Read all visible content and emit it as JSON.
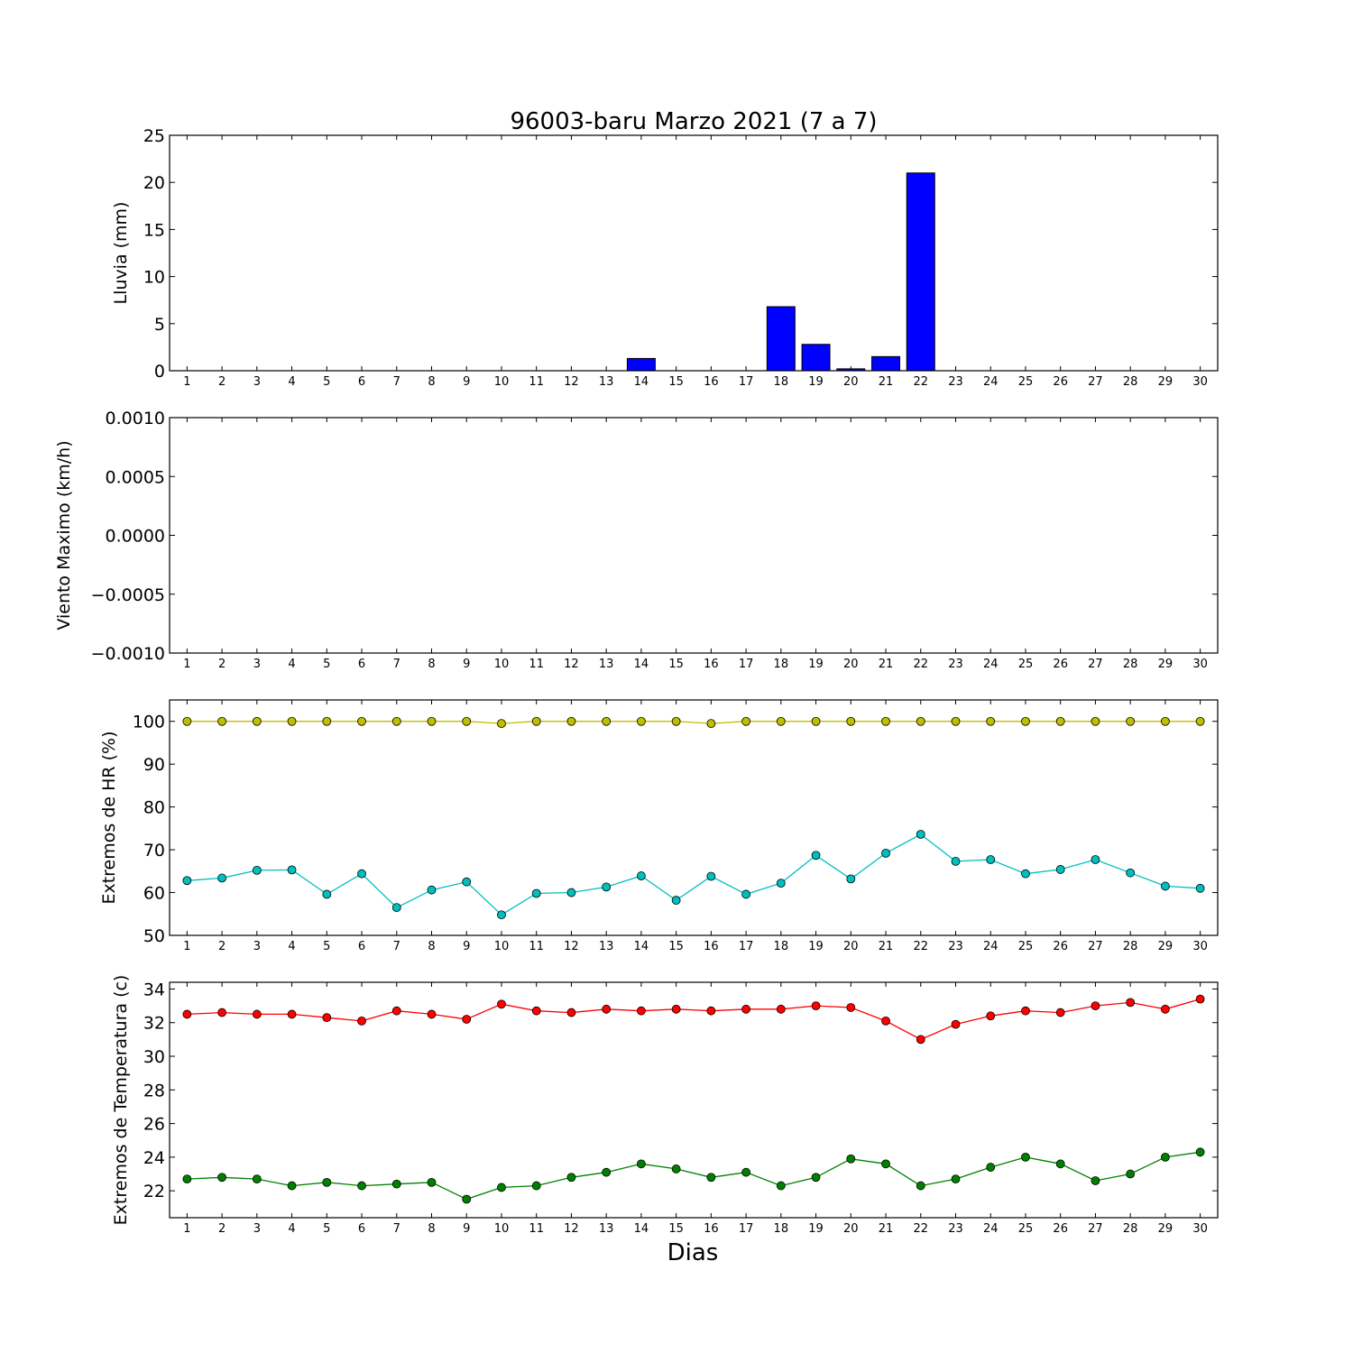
{
  "figure": {
    "title": "96003-baru Marzo 2021  (7 a 7)",
    "xlabel": "Dias"
  },
  "chart_data": [
    {
      "type": "bar",
      "ylabel": "Lluvia (mm)",
      "ylim": [
        0,
        25
      ],
      "yticks": [
        0,
        5,
        10,
        15,
        20,
        25
      ],
      "yticklabels": [
        "0",
        "5",
        "10",
        "15",
        "20",
        "25"
      ],
      "categories": [
        1,
        2,
        3,
        4,
        5,
        6,
        7,
        8,
        9,
        10,
        11,
        12,
        13,
        14,
        15,
        16,
        17,
        18,
        19,
        20,
        21,
        22,
        23,
        24,
        25,
        26,
        27,
        28,
        29,
        30
      ],
      "color": "#0000ff",
      "values": [
        0,
        0,
        0,
        0,
        0,
        0,
        0,
        0,
        0,
        0,
        0,
        0,
        0,
        1.3,
        0,
        0,
        0,
        6.8,
        2.8,
        0.2,
        1.5,
        21.0,
        0,
        0,
        0,
        0,
        0,
        0,
        0,
        0
      ]
    },
    {
      "type": "line",
      "ylabel": "Viento Maximo (km/h)",
      "ylim": [
        -0.001,
        0.001
      ],
      "yticks": [
        -0.001,
        -0.0005,
        0,
        0.0005,
        0.001
      ],
      "yticklabels": [
        "−0.0010",
        "−0.0005",
        "0.0000",
        "0.0005",
        "0.0010"
      ],
      "categories": [
        1,
        2,
        3,
        4,
        5,
        6,
        7,
        8,
        9,
        10,
        11,
        12,
        13,
        14,
        15,
        16,
        17,
        18,
        19,
        20,
        21,
        22,
        23,
        24,
        25,
        26,
        27,
        28,
        29,
        30
      ],
      "series": []
    },
    {
      "type": "line",
      "ylabel": "Extremos de HR (%)",
      "ylim": [
        50,
        105
      ],
      "yticks": [
        50,
        60,
        70,
        80,
        90,
        100
      ],
      "yticklabels": [
        "50",
        "60",
        "70",
        "80",
        "90",
        "100"
      ],
      "categories": [
        1,
        2,
        3,
        4,
        5,
        6,
        7,
        8,
        9,
        10,
        11,
        12,
        13,
        14,
        15,
        16,
        17,
        18,
        19,
        20,
        21,
        22,
        23,
        24,
        25,
        26,
        27,
        28,
        29,
        30
      ],
      "series": [
        {
          "color": "#bfbf00",
          "values": [
            100,
            100,
            100,
            100,
            100,
            100,
            100,
            100,
            100,
            99.5,
            100,
            100,
            100,
            100,
            100,
            99.5,
            100,
            100,
            100,
            100,
            100,
            100,
            100,
            100,
            100,
            100,
            100,
            100,
            100,
            100
          ]
        },
        {
          "color": "#00bfbf",
          "values": [
            62.8,
            63.4,
            65.2,
            65.3,
            59.6,
            64.4,
            56.5,
            60.6,
            62.5,
            54.8,
            59.8,
            60.0,
            61.3,
            63.9,
            58.2,
            63.8,
            59.6,
            62.2,
            68.7,
            63.2,
            69.2,
            73.6,
            67.3,
            67.7,
            64.4,
            65.4,
            67.7,
            64.6,
            61.5,
            61.0
          ]
        }
      ]
    },
    {
      "type": "line",
      "ylabel": "Extremos de Temperatura (c)",
      "ylim": [
        20.4,
        34.4
      ],
      "yticks": [
        22,
        24,
        26,
        28,
        30,
        32,
        34
      ],
      "yticklabels": [
        "22",
        "24",
        "26",
        "28",
        "30",
        "32",
        "34"
      ],
      "categories": [
        1,
        2,
        3,
        4,
        5,
        6,
        7,
        8,
        9,
        10,
        11,
        12,
        13,
        14,
        15,
        16,
        17,
        18,
        19,
        20,
        21,
        22,
        23,
        24,
        25,
        26,
        27,
        28,
        29,
        30
      ],
      "series": [
        {
          "color": "#ff0000",
          "values": [
            32.5,
            32.6,
            32.5,
            32.5,
            32.3,
            32.1,
            32.7,
            32.5,
            32.2,
            33.1,
            32.7,
            32.6,
            32.8,
            32.7,
            32.8,
            32.7,
            32.8,
            32.8,
            33.0,
            32.9,
            32.1,
            31.0,
            31.9,
            32.4,
            32.7,
            32.6,
            33.0,
            33.2,
            32.8,
            33.4
          ]
        },
        {
          "color": "#008000",
          "values": [
            22.7,
            22.8,
            22.7,
            22.3,
            22.5,
            22.3,
            22.4,
            22.5,
            21.5,
            22.2,
            22.3,
            22.8,
            23.1,
            23.6,
            23.3,
            22.8,
            23.1,
            22.3,
            22.8,
            23.9,
            23.6,
            22.3,
            22.7,
            23.4,
            24.0,
            23.6,
            22.6,
            23.0,
            24.0,
            24.3
          ]
        }
      ]
    }
  ]
}
